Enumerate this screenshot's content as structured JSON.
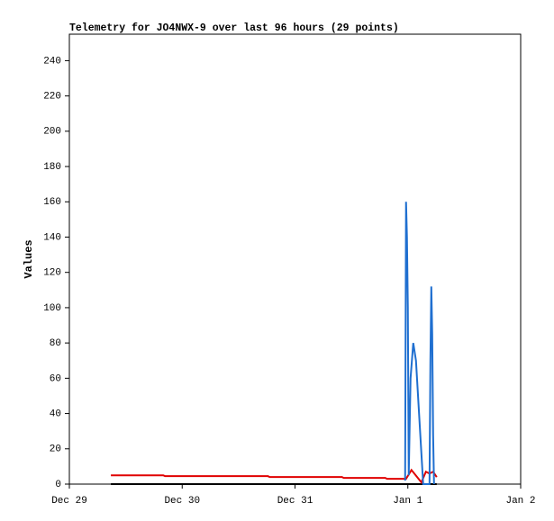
{
  "chart_data": {
    "type": "line",
    "title": "Telemetry for JO4NWX-9 over last 96 hours (29 points)",
    "y_label": "Values",
    "xlim": [
      0,
      4
    ],
    "xticks": [
      {
        "value": 0,
        "label": "Dec 29"
      },
      {
        "value": 1,
        "label": "Dec 30"
      },
      {
        "value": 2,
        "label": "Dec 31"
      },
      {
        "value": 3,
        "label": "Jan 1"
      },
      {
        "value": 4,
        "label": "Jan 2"
      }
    ],
    "ylim": [
      0,
      255
    ],
    "yticks": [
      0,
      20,
      40,
      60,
      80,
      100,
      120,
      140,
      160,
      180,
      200,
      220,
      240
    ],
    "series": [
      {
        "color": "#000000",
        "x": [
          0.368,
          3.256
        ],
        "values": [
          0,
          0
        ]
      },
      {
        "color": "#e00000",
        "x": [
          0.368,
          0.832,
          0.848,
          1.76,
          1.776,
          2.416,
          2.432,
          2.8,
          2.816,
          2.984,
          3.032,
          3.12,
          3.16,
          3.192,
          3.224,
          3.256
        ],
        "values": [
          5,
          5,
          4.5,
          4.5,
          4,
          4,
          3.5,
          3.5,
          3,
          3,
          8,
          1,
          7,
          6,
          7,
          4
        ]
      },
      {
        "color": "#1f6fd0",
        "x": [
          2.976,
          2.984,
          2.992,
          3.0,
          3.008,
          3.024,
          3.048,
          3.072,
          3.136,
          3.192,
          3.2,
          3.208,
          3.216,
          3.224,
          3.232
        ],
        "values": [
          2,
          160,
          140,
          100,
          5,
          60,
          80,
          70,
          0,
          0,
          70,
          112,
          85,
          28,
          0
        ]
      }
    ]
  }
}
